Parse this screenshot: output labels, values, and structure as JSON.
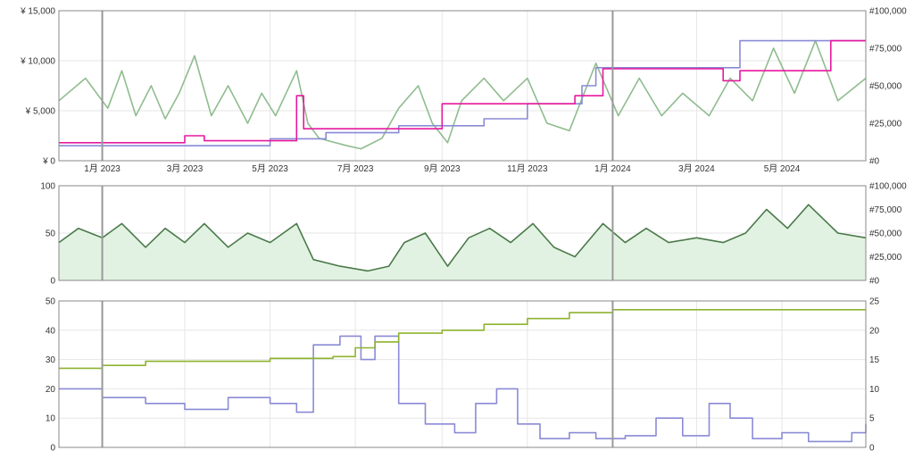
{
  "chart_data": [
    {
      "type": "line",
      "panel": "price-history",
      "title": "",
      "x_range": [
        "2022-12-01",
        "2024-06-30"
      ],
      "x_ticks": [
        {
          "date": "2023-01-01",
          "label": "1月 2023"
        },
        {
          "date": "2023-03-01",
          "label": "3月 2023"
        },
        {
          "date": "2023-05-01",
          "label": "5月 2023"
        },
        {
          "date": "2023-07-01",
          "label": "7月 2023"
        },
        {
          "date": "2023-09-01",
          "label": "9月 2023"
        },
        {
          "date": "2023-11-01",
          "label": "11月 2023"
        },
        {
          "date": "2024-01-01",
          "label": "1月 2024"
        },
        {
          "date": "2024-03-01",
          "label": "3月 2024"
        },
        {
          "date": "2024-05-01",
          "label": "5月 2024"
        }
      ],
      "year_lines": [
        "2023-01-01",
        "2024-01-01"
      ],
      "y_left": {
        "range": [
          0,
          15000
        ],
        "ticks": [
          {
            "v": 0,
            "label": "¥ 0"
          },
          {
            "v": 5000,
            "label": "¥ 5,000"
          },
          {
            "v": 10000,
            "label": "¥ 10,000"
          },
          {
            "v": 15000,
            "label": "¥ 15,000"
          }
        ]
      },
      "y_right": {
        "range": [
          0,
          100000
        ],
        "ticks": [
          {
            "v": 0,
            "label": "#0"
          },
          {
            "v": 25000,
            "label": "#25,000"
          },
          {
            "v": 50000,
            "label": "#50,000"
          },
          {
            "v": 75000,
            "label": "#75,000"
          },
          {
            "v": 100000,
            "label": "#100,000"
          }
        ]
      },
      "grid": true,
      "series": [
        {
          "axis": "right",
          "color": "#8fbc8f",
          "style": "line",
          "points": [
            [
              "2022-12-01",
              40000
            ],
            [
              "2022-12-20",
              55000
            ],
            [
              "2023-01-05",
              35000
            ],
            [
              "2023-01-15",
              60000
            ],
            [
              "2023-01-25",
              30000
            ],
            [
              "2023-02-05",
              50000
            ],
            [
              "2023-02-15",
              28000
            ],
            [
              "2023-02-25",
              45000
            ],
            [
              "2023-03-08",
              70000
            ],
            [
              "2023-03-20",
              30000
            ],
            [
              "2023-04-01",
              50000
            ],
            [
              "2023-04-15",
              25000
            ],
            [
              "2023-04-25",
              45000
            ],
            [
              "2023-05-05",
              30000
            ],
            [
              "2023-05-20",
              60000
            ],
            [
              "2023-05-28",
              25000
            ],
            [
              "2023-06-05",
              15000
            ],
            [
              "2023-06-25",
              10000
            ],
            [
              "2023-07-05",
              8000
            ],
            [
              "2023-07-20",
              15000
            ],
            [
              "2023-08-01",
              35000
            ],
            [
              "2023-08-15",
              50000
            ],
            [
              "2023-08-25",
              25000
            ],
            [
              "2023-09-05",
              12000
            ],
            [
              "2023-09-15",
              40000
            ],
            [
              "2023-10-01",
              55000
            ],
            [
              "2023-10-15",
              40000
            ],
            [
              "2023-11-01",
              55000
            ],
            [
              "2023-11-15",
              25000
            ],
            [
              "2023-12-01",
              20000
            ],
            [
              "2023-12-20",
              65000
            ],
            [
              "2024-01-05",
              30000
            ],
            [
              "2024-01-20",
              55000
            ],
            [
              "2024-02-05",
              30000
            ],
            [
              "2024-02-20",
              45000
            ],
            [
              "2024-03-10",
              30000
            ],
            [
              "2024-03-25",
              55000
            ],
            [
              "2024-04-10",
              40000
            ],
            [
              "2024-04-25",
              75000
            ],
            [
              "2024-05-10",
              45000
            ],
            [
              "2024-05-25",
              80000
            ],
            [
              "2024-06-10",
              40000
            ],
            [
              "2024-06-30",
              55000
            ]
          ]
        },
        {
          "axis": "left",
          "color": "#8a8ad6",
          "style": "step",
          "points": [
            [
              "2022-12-01",
              1500
            ],
            [
              "2023-05-01",
              1500
            ],
            [
              "2023-05-01",
              2200
            ],
            [
              "2023-06-10",
              2200
            ],
            [
              "2023-06-10",
              2800
            ],
            [
              "2023-08-01",
              2800
            ],
            [
              "2023-08-01",
              3500
            ],
            [
              "2023-10-01",
              3500
            ],
            [
              "2023-10-01",
              4200
            ],
            [
              "2023-11-01",
              4200
            ],
            [
              "2023-11-01",
              5700
            ],
            [
              "2023-12-10",
              5700
            ],
            [
              "2023-12-10",
              7500
            ],
            [
              "2023-12-20",
              7500
            ],
            [
              "2023-12-20",
              9300
            ],
            [
              "2024-04-01",
              9300
            ],
            [
              "2024-04-01",
              12000
            ],
            [
              "2024-06-30",
              12000
            ]
          ]
        },
        {
          "axis": "left",
          "color": "#e6199e",
          "style": "step",
          "points": [
            [
              "2022-12-01",
              1800
            ],
            [
              "2023-03-01",
              1800
            ],
            [
              "2023-03-01",
              2500
            ],
            [
              "2023-03-15",
              2500
            ],
            [
              "2023-03-15",
              2000
            ],
            [
              "2023-05-20",
              2000
            ],
            [
              "2023-05-20",
              6500
            ],
            [
              "2023-05-25",
              6500
            ],
            [
              "2023-05-25",
              3200
            ],
            [
              "2023-09-01",
              3200
            ],
            [
              "2023-09-01",
              5700
            ],
            [
              "2023-12-05",
              5700
            ],
            [
              "2023-12-05",
              6500
            ],
            [
              "2023-12-25",
              6500
            ],
            [
              "2023-12-25",
              9200
            ],
            [
              "2024-03-20",
              9200
            ],
            [
              "2024-03-20",
              8000
            ],
            [
              "2024-04-01",
              8000
            ],
            [
              "2024-04-01",
              9000
            ],
            [
              "2024-06-05",
              9000
            ],
            [
              "2024-06-05",
              12000
            ],
            [
              "2024-06-30",
              12000
            ]
          ]
        }
      ]
    },
    {
      "type": "area",
      "panel": "sales-rank",
      "title": "",
      "x_range": [
        "2022-12-01",
        "2024-06-30"
      ],
      "year_lines": [
        "2023-01-01",
        "2024-01-01"
      ],
      "y_left": {
        "range": [
          0,
          100
        ],
        "ticks": [
          {
            "v": 0,
            "label": "0"
          },
          {
            "v": 50,
            "label": "50"
          },
          {
            "v": 100,
            "label": "100"
          }
        ]
      },
      "y_right": {
        "range": [
          0,
          100000
        ],
        "ticks": [
          {
            "v": 0,
            "label": "#0"
          },
          {
            "v": 25000,
            "label": "#25,000"
          },
          {
            "v": 50000,
            "label": "#50,000"
          },
          {
            "v": 75000,
            "label": "#75,000"
          },
          {
            "v": 100000,
            "label": "#100,000"
          }
        ]
      },
      "grid": true,
      "series": [
        {
          "axis": "left",
          "color": "#4a7a4a",
          "fill": "#e2f2e2",
          "points": [
            [
              "2022-12-01",
              40
            ],
            [
              "2022-12-15",
              55
            ],
            [
              "2023-01-01",
              45
            ],
            [
              "2023-01-15",
              60
            ],
            [
              "2023-02-01",
              35
            ],
            [
              "2023-02-15",
              55
            ],
            [
              "2023-03-01",
              40
            ],
            [
              "2023-03-15",
              60
            ],
            [
              "2023-04-01",
              35
            ],
            [
              "2023-04-15",
              50
            ],
            [
              "2023-05-01",
              40
            ],
            [
              "2023-05-20",
              60
            ],
            [
              "2023-06-01",
              22
            ],
            [
              "2023-06-20",
              15
            ],
            [
              "2023-07-10",
              10
            ],
            [
              "2023-07-25",
              15
            ],
            [
              "2023-08-05",
              40
            ],
            [
              "2023-08-20",
              50
            ],
            [
              "2023-09-05",
              15
            ],
            [
              "2023-09-20",
              45
            ],
            [
              "2023-10-05",
              55
            ],
            [
              "2023-10-20",
              40
            ],
            [
              "2023-11-05",
              60
            ],
            [
              "2023-11-20",
              35
            ],
            [
              "2023-12-05",
              25
            ],
            [
              "2023-12-25",
              60
            ],
            [
              "2024-01-10",
              40
            ],
            [
              "2024-01-25",
              55
            ],
            [
              "2024-02-10",
              40
            ],
            [
              "2024-03-01",
              45
            ],
            [
              "2024-03-20",
              40
            ],
            [
              "2024-04-05",
              50
            ],
            [
              "2024-04-20",
              75
            ],
            [
              "2024-05-05",
              55
            ],
            [
              "2024-05-20",
              80
            ],
            [
              "2024-06-10",
              50
            ],
            [
              "2024-06-30",
              45
            ]
          ]
        }
      ]
    },
    {
      "type": "line",
      "panel": "offers-and-reviews",
      "title": "",
      "x_range": [
        "2022-12-01",
        "2024-06-30"
      ],
      "year_lines": [
        "2023-01-01",
        "2024-01-01"
      ],
      "y_left": {
        "range": [
          0,
          50
        ],
        "ticks": [
          {
            "v": 0,
            "label": "0"
          },
          {
            "v": 10,
            "label": "10"
          },
          {
            "v": 20,
            "label": "20"
          },
          {
            "v": 30,
            "label": "30"
          },
          {
            "v": 40,
            "label": "40"
          },
          {
            "v": 50,
            "label": "50"
          }
        ]
      },
      "y_right": {
        "range": [
          0,
          25
        ],
        "ticks": [
          {
            "v": 0,
            "label": "0"
          },
          {
            "v": 5,
            "label": "5"
          },
          {
            "v": 10,
            "label": "10"
          },
          {
            "v": 15,
            "label": "15"
          },
          {
            "v": 20,
            "label": "20"
          },
          {
            "v": 25,
            "label": "25"
          }
        ]
      },
      "grid": true,
      "series": [
        {
          "axis": "left",
          "color": "#8a8ad6",
          "style": "step",
          "points": [
            [
              "2022-12-01",
              20
            ],
            [
              "2023-01-01",
              17
            ],
            [
              "2023-02-01",
              15
            ],
            [
              "2023-03-01",
              13
            ],
            [
              "2023-04-01",
              17
            ],
            [
              "2023-05-01",
              15
            ],
            [
              "2023-05-20",
              12
            ],
            [
              "2023-06-01",
              35
            ],
            [
              "2023-06-20",
              38
            ],
            [
              "2023-07-05",
              30
            ],
            [
              "2023-07-15",
              38
            ],
            [
              "2023-08-01",
              15
            ],
            [
              "2023-08-20",
              8
            ],
            [
              "2023-09-10",
              5
            ],
            [
              "2023-09-25",
              15
            ],
            [
              "2023-10-10",
              20
            ],
            [
              "2023-10-25",
              8
            ],
            [
              "2023-11-10",
              3
            ],
            [
              "2023-12-01",
              5
            ],
            [
              "2023-12-20",
              3
            ],
            [
              "2024-01-10",
              4
            ],
            [
              "2024-02-01",
              10
            ],
            [
              "2024-02-20",
              4
            ],
            [
              "2024-03-10",
              15
            ],
            [
              "2024-03-25",
              10
            ],
            [
              "2024-04-10",
              3
            ],
            [
              "2024-05-01",
              5
            ],
            [
              "2024-05-20",
              2
            ],
            [
              "2024-06-20",
              5
            ],
            [
              "2024-06-30",
              8
            ]
          ]
        },
        {
          "axis": "right",
          "color": "#8db32e",
          "style": "step",
          "points": [
            [
              "2022-12-01",
              13.5
            ],
            [
              "2023-01-01",
              14
            ],
            [
              "2023-02-01",
              14.7
            ],
            [
              "2023-05-01",
              14.7
            ],
            [
              "2023-05-01",
              15.2
            ],
            [
              "2023-06-15",
              15.5
            ],
            [
              "2023-07-01",
              17
            ],
            [
              "2023-07-15",
              18
            ],
            [
              "2023-08-01",
              19.5
            ],
            [
              "2023-09-01",
              20
            ],
            [
              "2023-10-01",
              21
            ],
            [
              "2023-11-01",
              22
            ],
            [
              "2023-12-01",
              23
            ],
            [
              "2024-01-01",
              23.5
            ],
            [
              "2024-06-30",
              23.5
            ]
          ]
        }
      ]
    }
  ]
}
